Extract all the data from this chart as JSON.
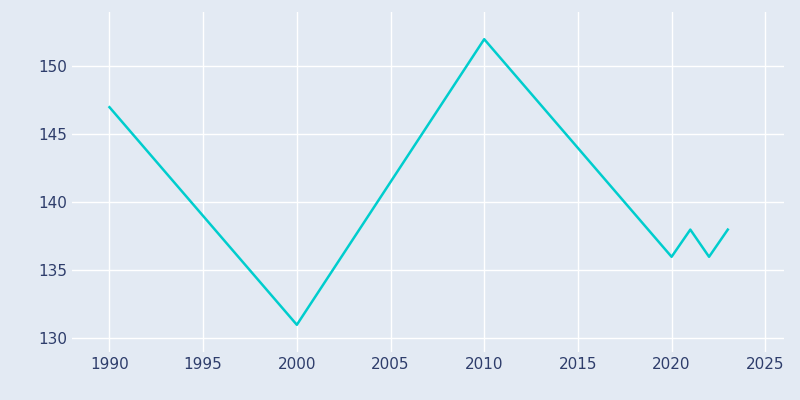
{
  "years": [
    1990,
    2000,
    2010,
    2020,
    2021,
    2022,
    2023
  ],
  "population": [
    147,
    131,
    152,
    136,
    138,
    136,
    138
  ],
  "line_color": "#00CDCD",
  "background_color": "#E3EAF3",
  "grid_color": "#FFFFFF",
  "xlim": [
    1988,
    2026
  ],
  "ylim": [
    129,
    154
  ],
  "yticks": [
    130,
    135,
    140,
    145,
    150
  ],
  "xticks": [
    1990,
    1995,
    2000,
    2005,
    2010,
    2015,
    2020,
    2025
  ],
  "linewidth": 1.8,
  "tick_color": "#2E3D6B",
  "tick_fontsize": 11
}
